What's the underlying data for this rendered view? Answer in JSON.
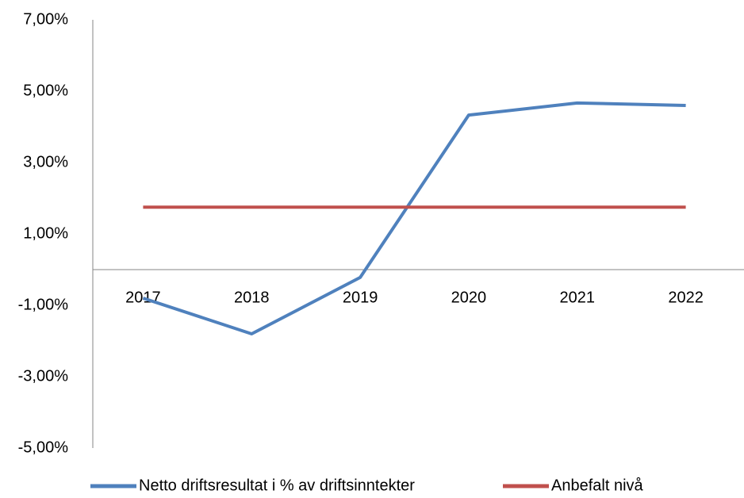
{
  "chart_data": {
    "type": "line",
    "categories": [
      "2017",
      "2018",
      "2019",
      "2020",
      "2021",
      "2022"
    ],
    "series": [
      {
        "name": "Netto driftsresultat i % av driftsinntekter",
        "color": "#4f81bd",
        "values": [
          -0.8,
          -1.8,
          -0.22,
          4.33,
          4.67,
          4.6
        ]
      },
      {
        "name": "Anbefalt nivå",
        "color": "#c0504d",
        "values": [
          1.75,
          1.75,
          1.75,
          1.75,
          1.75,
          1.75
        ]
      }
    ],
    "ylim": [
      -5,
      7
    ],
    "yticks": [
      {
        "value": -5,
        "label": "-5,00%"
      },
      {
        "value": -3,
        "label": "-3,00%"
      },
      {
        "value": -1,
        "label": "-1,00%"
      },
      {
        "value": 1,
        "label": "1,00%"
      },
      {
        "value": 3,
        "label": "3,00%"
      },
      {
        "value": 5,
        "label": "5,00%"
      },
      {
        "value": 7,
        "label": "7,00%"
      }
    ],
    "grid": false,
    "legend": "bottom"
  }
}
